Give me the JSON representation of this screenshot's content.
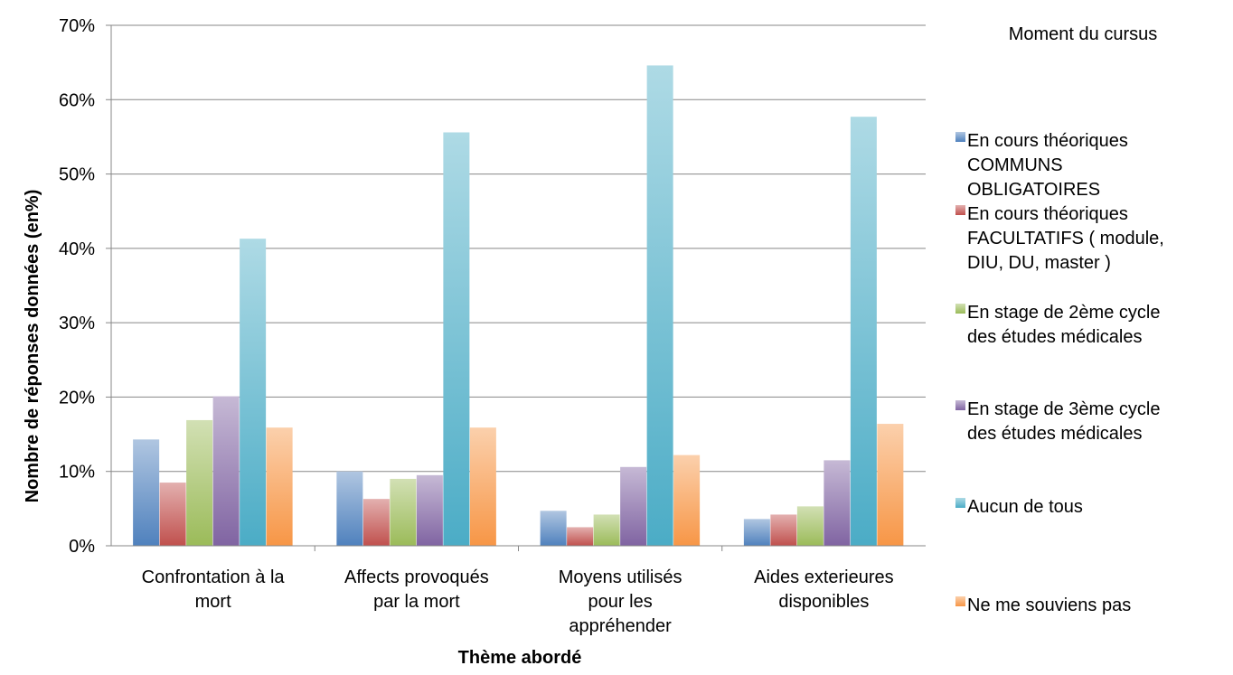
{
  "chart_data": {
    "type": "bar",
    "xlabel": "Thème abordé",
    "ylabel": "Nombre de réponses données (en%)",
    "ylim": [
      0,
      70
    ],
    "yticks": [
      "0%",
      "10%",
      "20%",
      "30%",
      "40%",
      "50%",
      "60%",
      "70%"
    ],
    "grid": true,
    "legend_title": "Moment du cursus",
    "legend_position": "right",
    "categories": [
      [
        "Confrontation à la",
        "mort"
      ],
      [
        "Affects provoqués",
        "par la mort"
      ],
      [
        "Moyens utilisés",
        "pour les",
        "appréhender"
      ],
      [
        "Aides exterieures",
        "disponibles"
      ]
    ],
    "series": [
      {
        "name": [
          "En cours théoriques",
          "COMMUNS",
          "OBLIGATOIRES"
        ],
        "color": "#4f81bd",
        "values": [
          14.3,
          10.0,
          4.7,
          3.6
        ]
      },
      {
        "name": [
          "En cours théoriques",
          "FACULTATIFS ( module,",
          "DIU, DU, master )"
        ],
        "color": "#c0504d",
        "values": [
          8.5,
          6.3,
          2.5,
          4.2
        ]
      },
      {
        "name": [
          "En stage de 2ème cycle",
          "des études médicales"
        ],
        "color": "#9bbb59",
        "values": [
          16.9,
          9.0,
          4.2,
          5.3
        ]
      },
      {
        "name": [
          "En stage de 3ème cycle",
          "des études médicales"
        ],
        "color": "#8064a2",
        "values": [
          20.1,
          9.5,
          10.6,
          11.5
        ]
      },
      {
        "name": [
          "Aucun de tous"
        ],
        "color": "#4bacc6",
        "values": [
          41.3,
          55.6,
          64.6,
          57.7
        ]
      },
      {
        "name": [
          "Ne me souviens pas"
        ],
        "color": "#f79646",
        "values": [
          15.9,
          15.9,
          12.2,
          16.4
        ]
      }
    ]
  }
}
